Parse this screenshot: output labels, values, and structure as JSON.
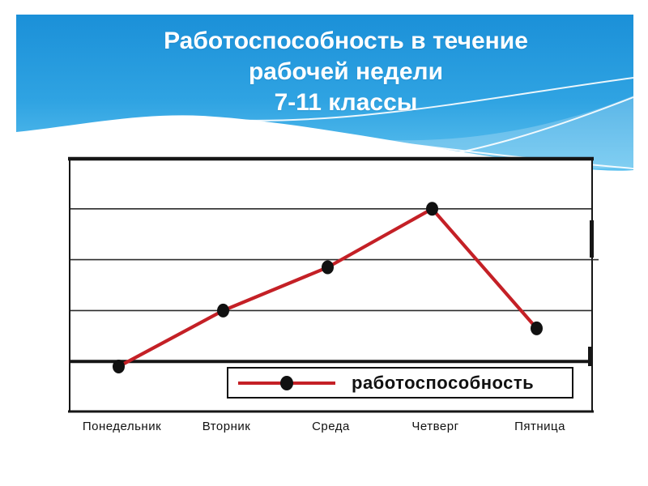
{
  "slide": {
    "title_lines": [
      "Работоспособность в течение",
      "рабочей недели",
      "7-11 классы"
    ],
    "colors": {
      "header_blue_top": "#1b90d8",
      "header_blue_bottom": "#5fc2ef",
      "wave_highlight": "#ffffff",
      "line_red": "#c42026",
      "marker_black": "#111111",
      "chart_border": "#161616",
      "gridline": "#2b2b2b",
      "plot_bg": "#ffffff",
      "label_text": "#111111"
    }
  },
  "chart_data": {
    "type": "line",
    "title": "",
    "xlabel": "",
    "ylabel": "",
    "categories": [
      "Понедельник",
      "Вторник",
      "Среда",
      "Четверг",
      "Пятница"
    ],
    "series": [
      {
        "name": "работоспособность",
        "values": [
          0.9,
          2.0,
          2.85,
          4.0,
          1.65
        ]
      }
    ],
    "ylim": [
      0,
      5
    ],
    "gridlines": {
      "thin_values": [
        2,
        3,
        4
      ],
      "thick_value": 1,
      "tick_labels_visible": false
    },
    "legend": {
      "position": "bottom-inside",
      "entries": [
        "работоспособность"
      ]
    }
  }
}
